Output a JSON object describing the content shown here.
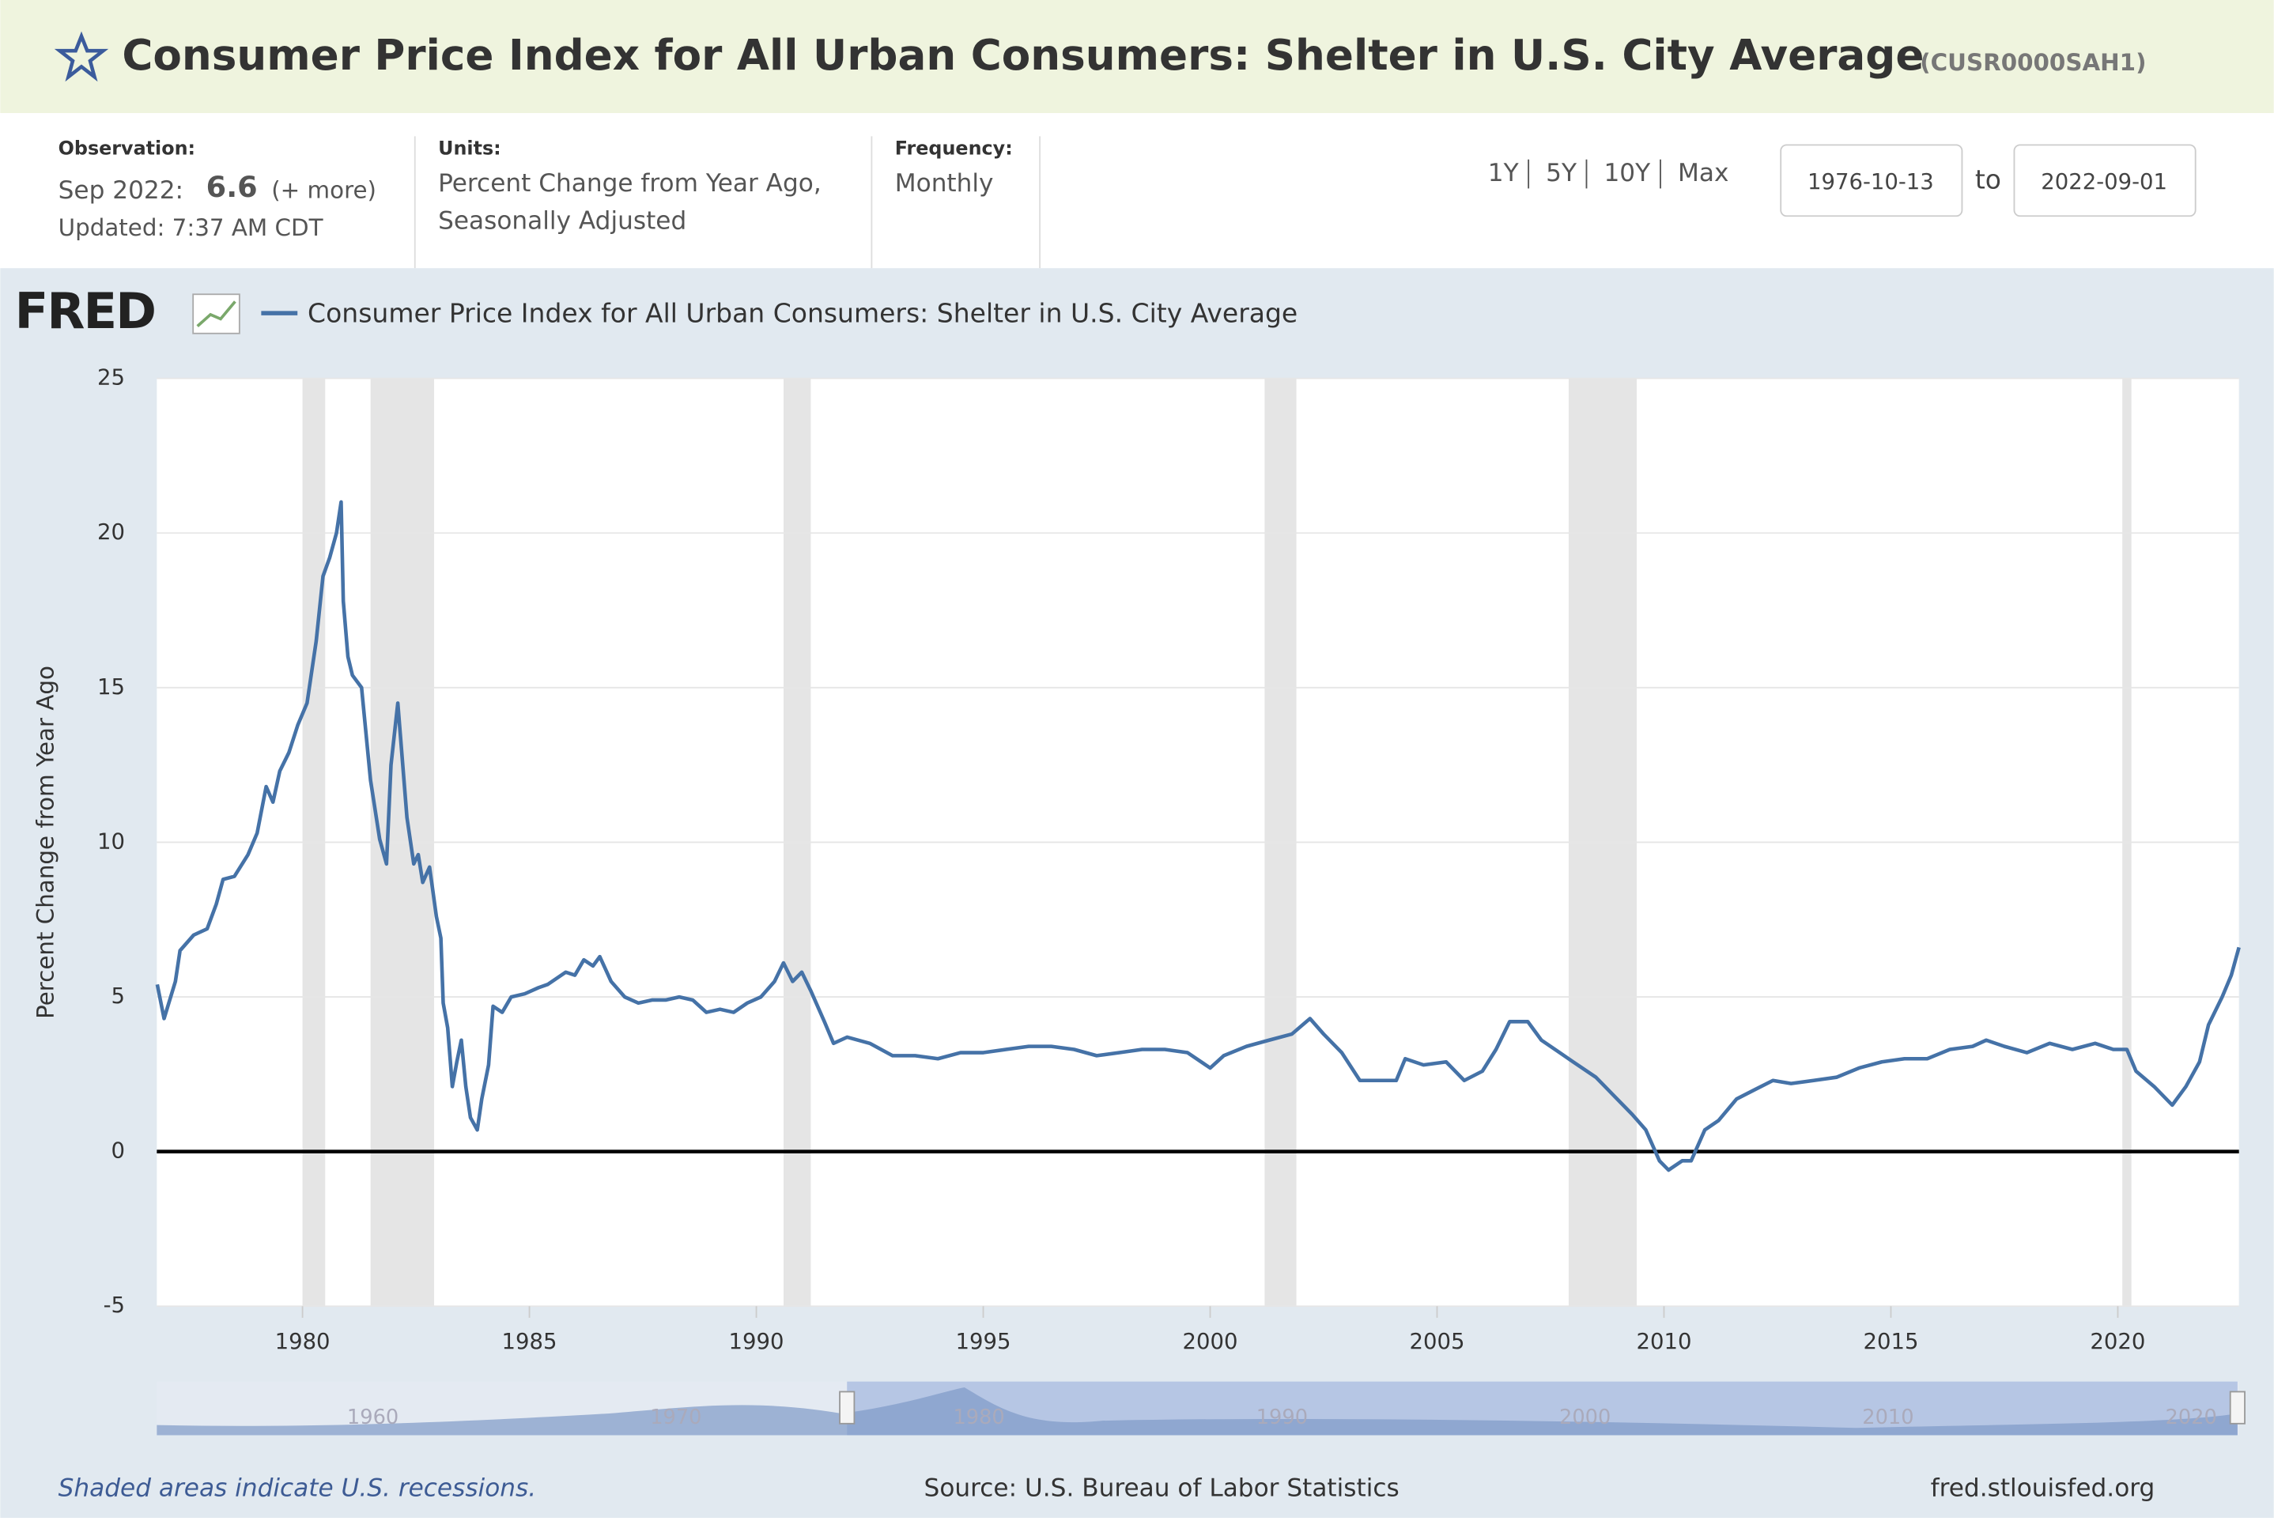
{
  "header": {
    "title": "Consumer Price Index for All Urban Consumers: Shelter in U.S. City Average",
    "series_id": "(CUSR0000SAH1)"
  },
  "info": {
    "obs_label": "Observation:",
    "obs_date": "Sep 2022:",
    "obs_value": "6.6",
    "obs_more": "(+ more)",
    "updated": "Updated: 7:37 AM CDT",
    "units_label": "Units:",
    "units_1": "Percent Change from Year Ago,",
    "units_2": "Seasonally Adjusted",
    "freq_label": "Frequency:",
    "freq": "Monthly"
  },
  "controls": {
    "ranges": [
      "1Y",
      "5Y",
      "10Y",
      "Max"
    ],
    "start": "1976-10-13",
    "to": "to",
    "end": "2022-09-01"
  },
  "footer": {
    "note": "Shaded areas indicate U.S. recessions.",
    "source": "Source: U.S. Bureau of Labor Statistics",
    "site": "fred.stlouisfed.org"
  },
  "navigator_labels": [
    "1960",
    "1970",
    "1980",
    "1990",
    "2000",
    "2010",
    "2020"
  ],
  "chart_data": {
    "type": "line",
    "logo": "FRED",
    "ylabel": "Percent Change from Year Ago",
    "xlim": [
      1976.79,
      2022.67
    ],
    "ylim": [
      -5,
      25
    ],
    "xticks": [
      1980,
      1985,
      1990,
      1995,
      2000,
      2005,
      2010,
      2015,
      2020
    ],
    "yticks": [
      -5,
      0,
      5,
      10,
      15,
      20,
      25
    ],
    "grid": true,
    "recessions": [
      [
        1980.0,
        1980.5
      ],
      [
        1981.5,
        1982.9
      ],
      [
        1990.6,
        1991.2
      ],
      [
        2001.2,
        2001.9
      ],
      [
        2007.9,
        2009.4
      ],
      [
        2020.1,
        2020.3
      ]
    ],
    "series": [
      {
        "name": "Consumer Price Index for All Urban Consumers: Shelter in U.S. City Average",
        "color": "#4572a7",
        "x": [
          1976.8,
          1976.95,
          1977.2,
          1977.3,
          1977.6,
          1977.9,
          1978.1,
          1978.25,
          1978.5,
          1978.8,
          1979.0,
          1979.2,
          1979.35,
          1979.5,
          1979.7,
          1979.9,
          1980.1,
          1980.3,
          1980.45,
          1980.6,
          1980.75,
          1980.85,
          1980.9,
          1981.0,
          1981.1,
          1981.3,
          1981.5,
          1981.7,
          1981.85,
          1981.95,
          1982.1,
          1982.3,
          1982.45,
          1982.55,
          1982.65,
          1982.8,
          1982.95,
          1983.05,
          1983.1,
          1983.2,
          1983.3,
          1983.4,
          1983.5,
          1983.6,
          1983.7,
          1983.85,
          1983.95,
          1984.1,
          1984.2,
          1984.4,
          1984.6,
          1984.9,
          1985.2,
          1985.4,
          1985.6,
          1985.8,
          1986.0,
          1986.2,
          1986.4,
          1986.55,
          1986.8,
          1987.1,
          1987.4,
          1987.7,
          1988.0,
          1988.3,
          1988.6,
          1988.9,
          1989.2,
          1989.5,
          1989.8,
          1990.1,
          1990.4,
          1990.6,
          1990.8,
          1991.0,
          1991.2,
          1991.5,
          1991.7,
          1992.0,
          1992.5,
          1993.0,
          1993.5,
          1994.0,
          1994.5,
          1995.0,
          1995.5,
          1996.0,
          1996.5,
          1997.0,
          1997.5,
          1998.0,
          1998.5,
          1999.0,
          1999.5,
          2000.0,
          2000.3,
          2000.8,
          2001.3,
          2001.8,
          2002.2,
          2002.5,
          2002.9,
          2003.3,
          2003.8,
          2004.1,
          2004.3,
          2004.7,
          2005.2,
          2005.6,
          2006.0,
          2006.3,
          2006.6,
          2007.0,
          2007.3,
          2007.7,
          2008.0,
          2008.5,
          2008.9,
          2009.3,
          2009.6,
          2009.9,
          2010.1,
          2010.4,
          2010.6,
          2010.9,
          2011.2,
          2011.6,
          2012.0,
          2012.4,
          2012.8,
          2013.3,
          2013.8,
          2014.3,
          2014.8,
          2015.3,
          2015.8,
          2016.3,
          2016.8,
          2017.1,
          2017.5,
          2018.0,
          2018.5,
          2019.0,
          2019.5,
          2019.9,
          2020.2,
          2020.4,
          2020.8,
          2021.2,
          2021.5,
          2021.8,
          2022.0,
          2022.3,
          2022.5,
          2022.67
        ],
        "values": [
          5.4,
          4.3,
          5.5,
          6.5,
          7.0,
          7.2,
          8.0,
          8.8,
          8.9,
          9.6,
          10.3,
          11.8,
          11.3,
          12.3,
          12.9,
          13.8,
          14.5,
          16.5,
          18.6,
          19.2,
          20.0,
          21.0,
          17.8,
          16.0,
          15.4,
          15.0,
          12.0,
          10.1,
          9.3,
          12.5,
          14.5,
          10.8,
          9.3,
          9.6,
          8.7,
          9.2,
          7.6,
          6.9,
          4.8,
          4.0,
          2.1,
          2.9,
          3.6,
          2.1,
          1.1,
          0.7,
          1.7,
          2.8,
          4.7,
          4.5,
          5.0,
          5.1,
          5.3,
          5.4,
          5.6,
          5.8,
          5.7,
          6.2,
          6.0,
          6.3,
          5.5,
          5.0,
          4.8,
          4.9,
          4.9,
          5.0,
          4.9,
          4.5,
          4.6,
          4.5,
          4.8,
          5.0,
          5.5,
          6.1,
          5.5,
          5.8,
          5.2,
          4.2,
          3.5,
          3.7,
          3.5,
          3.1,
          3.1,
          3.0,
          3.2,
          3.2,
          3.3,
          3.4,
          3.4,
          3.3,
          3.1,
          3.2,
          3.3,
          3.3,
          3.2,
          2.7,
          3.1,
          3.4,
          3.6,
          3.8,
          4.3,
          3.8,
          3.2,
          2.3,
          2.3,
          2.3,
          3.0,
          2.8,
          2.9,
          2.3,
          2.6,
          3.3,
          4.2,
          4.2,
          3.6,
          3.2,
          2.9,
          2.4,
          1.8,
          1.2,
          0.7,
          -0.3,
          -0.6,
          -0.3,
          -0.3,
          0.7,
          1.0,
          1.7,
          2.0,
          2.3,
          2.2,
          2.3,
          2.4,
          2.7,
          2.9,
          3.0,
          3.0,
          3.3,
          3.4,
          3.6,
          3.4,
          3.2,
          3.5,
          3.3,
          3.5,
          3.3,
          3.3,
          2.6,
          2.1,
          1.5,
          2.1,
          2.9,
          4.1,
          5.0,
          5.7,
          6.6
        ]
      }
    ]
  }
}
